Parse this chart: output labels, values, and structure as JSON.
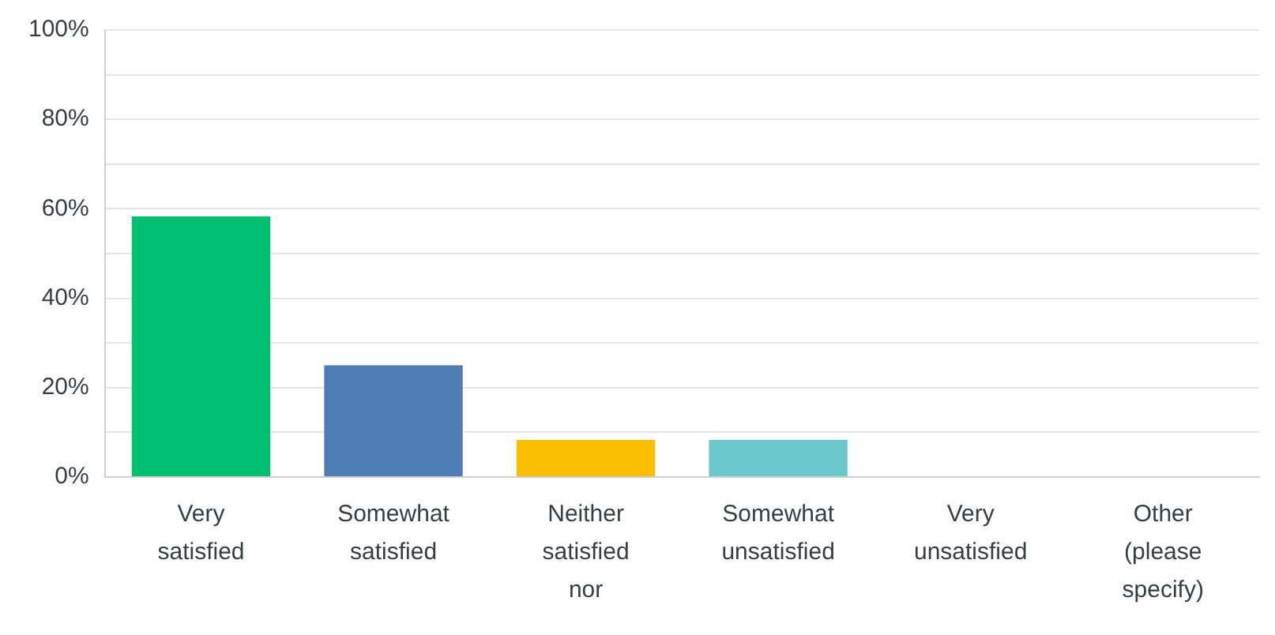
{
  "chart_data": {
    "type": "bar",
    "categories": [
      "Very satisfied",
      "Somewhat satisfied",
      "Neither satisfied nor",
      "Somewhat unsatisfied",
      "Very unsatisfied",
      "Other (please specify)"
    ],
    "values": [
      58.3,
      25,
      8.3,
      8.3,
      0,
      0
    ],
    "colors": [
      "#00bf6f",
      "#507cb6",
      "#f9be00",
      "#6bc8cd",
      "#ff8b4f",
      "#7d5ce6"
    ],
    "ylim": [
      0,
      100
    ],
    "yticks": [
      {
        "value": 0,
        "label": "0%"
      },
      {
        "value": 10,
        "label": null
      },
      {
        "value": 20,
        "label": "20%"
      },
      {
        "value": 30,
        "label": null
      },
      {
        "value": 40,
        "label": "40%"
      },
      {
        "value": 50,
        "label": null
      },
      {
        "value": 60,
        "label": "60%"
      },
      {
        "value": 70,
        "label": null
      },
      {
        "value": 80,
        "label": "80%"
      },
      {
        "value": 90,
        "label": null
      },
      {
        "value": 100,
        "label": "100%"
      }
    ],
    "grid": "y",
    "legend": false
  }
}
